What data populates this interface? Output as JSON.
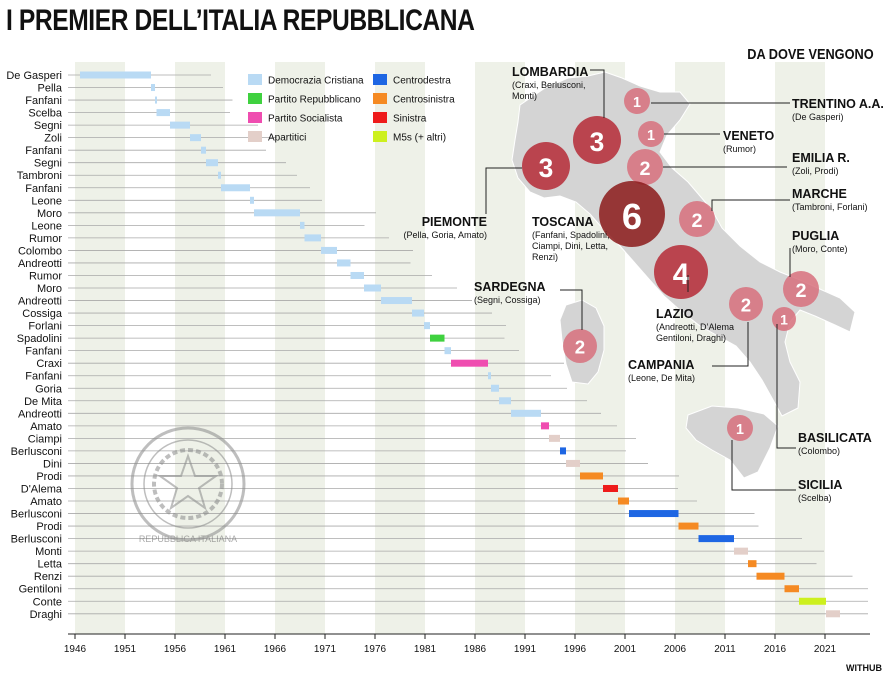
{
  "title": "I PREMIER DELL’ITALIA REPUBBLICANA",
  "subtitle": "DA DOVE VENGONO",
  "credit": "WITHUB",
  "colors": {
    "DC": "#b9daf4",
    "PRI": "#3fd13f",
    "PSI": "#ef4db0",
    "IND": "#e3cfc9",
    "CD": "#1e66e3",
    "CS": "#f58a23",
    "SIN": "#ee1b1b",
    "M5S": "#cdf01e"
  },
  "chart_data": {
    "type": "bar",
    "subtype": "gantt",
    "xlabel": "",
    "ylabel": "",
    "xlim": [
      1946,
      2024
    ],
    "ticks": [
      1946,
      1951,
      1956,
      1961,
      1966,
      1971,
      1976,
      1981,
      1986,
      1991,
      1996,
      2001,
      2006,
      2011,
      2016,
      2021
    ],
    "legend": [
      {
        "key": "DC",
        "label": "Democrazia Cristiana"
      },
      {
        "key": "PRI",
        "label": "Partito Repubblicano"
      },
      {
        "key": "PSI",
        "label": "Partito Socialista"
      },
      {
        "key": "IND",
        "label": "Apartitici"
      },
      {
        "key": "CD",
        "label": "Centrodestra"
      },
      {
        "key": "CS",
        "label": "Centrosinistra"
      },
      {
        "key": "SIN",
        "label": "Sinistra"
      },
      {
        "key": "M5S",
        "label": "M5s (+ altri)"
      }
    ],
    "premiers": [
      {
        "name": "De Gasperi",
        "start": 1946.5,
        "end": 1953.6,
        "party": "DC"
      },
      {
        "name": "Pella",
        "start": 1953.6,
        "end": 1954.0,
        "party": "DC"
      },
      {
        "name": "Fanfani",
        "start": 1954.0,
        "end": 1954.15,
        "party": "DC"
      },
      {
        "name": "Scelba",
        "start": 1954.15,
        "end": 1955.5,
        "party": "DC"
      },
      {
        "name": "Segni",
        "start": 1955.5,
        "end": 1957.5,
        "party": "DC"
      },
      {
        "name": "Zoli",
        "start": 1957.5,
        "end": 1958.6,
        "party": "DC"
      },
      {
        "name": "Fanfani",
        "start": 1958.6,
        "end": 1959.1,
        "party": "DC"
      },
      {
        "name": "Segni",
        "start": 1959.1,
        "end": 1960.3,
        "party": "DC"
      },
      {
        "name": "Tambroni",
        "start": 1960.3,
        "end": 1960.6,
        "party": "DC"
      },
      {
        "name": "Fanfani",
        "start": 1960.6,
        "end": 1963.5,
        "party": "DC"
      },
      {
        "name": "Leone",
        "start": 1963.5,
        "end": 1963.9,
        "party": "DC"
      },
      {
        "name": "Moro",
        "start": 1963.9,
        "end": 1968.5,
        "party": "DC"
      },
      {
        "name": "Leone",
        "start": 1968.5,
        "end": 1968.95,
        "party": "DC"
      },
      {
        "name": "Rumor",
        "start": 1968.95,
        "end": 1970.6,
        "party": "DC"
      },
      {
        "name": "Colombo",
        "start": 1970.6,
        "end": 1972.2,
        "party": "DC"
      },
      {
        "name": "Andreotti",
        "start": 1972.2,
        "end": 1973.55,
        "party": "DC"
      },
      {
        "name": "Rumor",
        "start": 1973.55,
        "end": 1974.9,
        "party": "DC"
      },
      {
        "name": "Moro",
        "start": 1974.9,
        "end": 1976.6,
        "party": "DC"
      },
      {
        "name": "Andreotti",
        "start": 1976.6,
        "end": 1979.7,
        "party": "DC"
      },
      {
        "name": "Cossiga",
        "start": 1979.7,
        "end": 1980.9,
        "party": "DC"
      },
      {
        "name": "Forlani",
        "start": 1980.9,
        "end": 1981.5,
        "party": "DC"
      },
      {
        "name": "Spadolini",
        "start": 1981.5,
        "end": 1982.95,
        "party": "PRI"
      },
      {
        "name": "Fanfani",
        "start": 1982.95,
        "end": 1983.6,
        "party": "DC"
      },
      {
        "name": "Craxi",
        "start": 1983.6,
        "end": 1987.3,
        "party": "PSI"
      },
      {
        "name": "Fanfani",
        "start": 1987.3,
        "end": 1987.6,
        "party": "DC"
      },
      {
        "name": "Goria",
        "start": 1987.6,
        "end": 1988.4,
        "party": "DC"
      },
      {
        "name": "De Mita",
        "start": 1988.4,
        "end": 1989.6,
        "party": "DC"
      },
      {
        "name": "Andreotti",
        "start": 1989.6,
        "end": 1992.6,
        "party": "DC"
      },
      {
        "name": "Amato",
        "start": 1992.6,
        "end": 1993.4,
        "party": "PSI"
      },
      {
        "name": "Ciampi",
        "start": 1993.4,
        "end": 1994.5,
        "party": "IND"
      },
      {
        "name": "Berlusconi",
        "start": 1994.5,
        "end": 1995.1,
        "party": "CD"
      },
      {
        "name": "Dini",
        "start": 1995.1,
        "end": 1996.5,
        "party": "IND"
      },
      {
        "name": "Prodi",
        "start": 1996.5,
        "end": 1998.8,
        "party": "CS"
      },
      {
        "name": "D'Alema",
        "start": 1998.8,
        "end": 2000.3,
        "party": "SIN"
      },
      {
        "name": "Amato",
        "start": 2000.3,
        "end": 2001.4,
        "party": "CS"
      },
      {
        "name": "Berlusconi",
        "start": 2001.4,
        "end": 2006.35,
        "party": "CD"
      },
      {
        "name": "Prodi",
        "start": 2006.35,
        "end": 2008.35,
        "party": "CS"
      },
      {
        "name": "Berlusconi",
        "start": 2008.35,
        "end": 2011.9,
        "party": "CD"
      },
      {
        "name": "Monti",
        "start": 2011.9,
        "end": 2013.3,
        "party": "IND"
      },
      {
        "name": "Letta",
        "start": 2013.3,
        "end": 2014.15,
        "party": "CS"
      },
      {
        "name": "Renzi",
        "start": 2014.15,
        "end": 2016.95,
        "party": "CS"
      },
      {
        "name": "Gentiloni",
        "start": 2016.95,
        "end": 2018.4,
        "party": "CS"
      },
      {
        "name": "Conte",
        "start": 2018.4,
        "end": 2021.1,
        "party": "M5S"
      },
      {
        "name": "Draghi",
        "start": 2021.1,
        "end": 2022.5,
        "party": "IND"
      }
    ],
    "regions": [
      {
        "name": "LOMBARDIA",
        "count": 3,
        "premiers": "(Craxi, Berlusconi, Monti)"
      },
      {
        "name": "TRENTINO A.A.",
        "count": 1,
        "premiers": "(De Gasperi)"
      },
      {
        "name": "VENETO",
        "count": 1,
        "premiers": "(Rumor)"
      },
      {
        "name": "EMILIA R.",
        "count": 2,
        "premiers": "(Zoli, Prodi)"
      },
      {
        "name": "PIEMONTE",
        "count": 3,
        "premiers": "(Pella, Goria, Amato)"
      },
      {
        "name": "TOSCANA",
        "count": 6,
        "premiers": "(Fanfani, Spadolini, Ciampi, Dini, Letta, Renzi)"
      },
      {
        "name": "MARCHE",
        "count": 2,
        "premiers": "(Tambroni, Forlani)"
      },
      {
        "name": "LAZIO",
        "count": 4,
        "premiers": "(Andreotti, D’Alema Gentiloni, Draghi)"
      },
      {
        "name": "PUGLIA",
        "count": 2,
        "premiers": "(Moro, Conte)"
      },
      {
        "name": "SARDEGNA",
        "count": 2,
        "premiers": "(Segni, Cossiga)"
      },
      {
        "name": "CAMPANIA",
        "count": 2,
        "premiers": "(Leone, De Mita)"
      },
      {
        "name": "BASILICATA",
        "count": 1,
        "premiers": "(Colombo)"
      },
      {
        "name": "SICILIA",
        "count": 1,
        "premiers": "(Scelba)"
      }
    ]
  },
  "emblem": {
    "text": "REPUBBLICA ITALIANA"
  }
}
